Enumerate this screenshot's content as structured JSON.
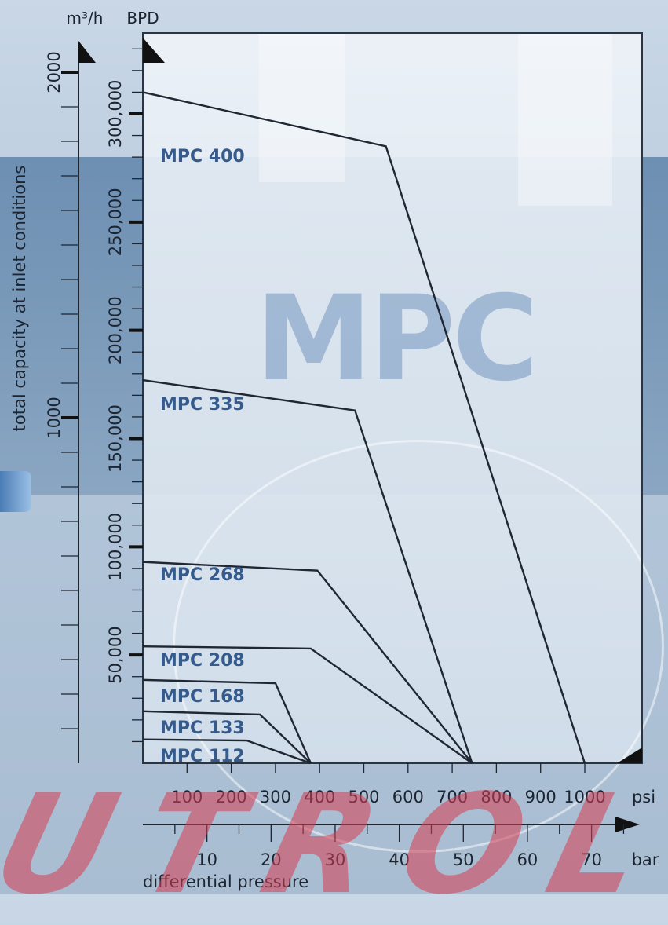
{
  "chart_data": {
    "type": "line",
    "left_axes": [
      {
        "unit": "m³/h",
        "ticks": [
          1000,
          2000
        ]
      },
      {
        "unit": "BPD",
        "ticks": [
          50000,
          100000,
          150000,
          200000,
          250000,
          300000
        ]
      }
    ],
    "ylabel": "total capacity at inlet conditions",
    "xlabel": "differential pressure",
    "x_axes": [
      {
        "unit": "psi",
        "ticks": [
          100,
          200,
          300,
          400,
          500,
          600,
          700,
          800,
          900,
          1000
        ]
      },
      {
        "unit": "bar",
        "ticks": [
          10,
          20,
          30,
          40,
          50,
          60,
          70
        ]
      }
    ],
    "psi_range": [
      0,
      1100
    ],
    "bpd_range": [
      0,
      340000
    ],
    "series": [
      {
        "name": "MPC 400",
        "x": [
          0,
          550,
          1000
        ],
        "y": [
          310000,
          285000,
          0
        ]
      },
      {
        "name": "MPC 335",
        "x": [
          0,
          480,
          745
        ],
        "y": [
          177000,
          163000,
          0
        ]
      },
      {
        "name": "MPC 268",
        "x": [
          0,
          395,
          745
        ],
        "y": [
          93000,
          89000,
          0
        ]
      },
      {
        "name": "MPC 208",
        "x": [
          0,
          380,
          745
        ],
        "y": [
          54000,
          53000,
          0
        ]
      },
      {
        "name": "MPC 168",
        "x": [
          0,
          300,
          380
        ],
        "y": [
          38500,
          37000,
          0
        ]
      },
      {
        "name": "MPC 133",
        "x": [
          0,
          265,
          380
        ],
        "y": [
          24000,
          22500,
          0
        ]
      },
      {
        "name": "MPC 112",
        "x": [
          0,
          235,
          380
        ],
        "y": [
          11000,
          10500,
          0
        ]
      }
    ],
    "watermark": "MPC",
    "brand": "UTROL"
  }
}
